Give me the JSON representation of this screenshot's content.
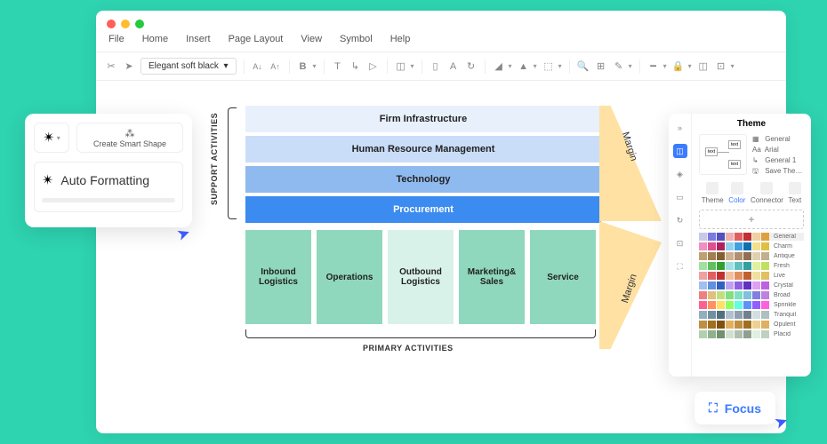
{
  "menubar": [
    "File",
    "Home",
    "Insert",
    "Page Layout",
    "View",
    "Symbol",
    "Help"
  ],
  "toolbar": {
    "font": "Elegant soft black"
  },
  "diagram": {
    "support_label": "SUPPORT ACTIVITIES",
    "primary_label": "PRIMARY ACTIVITIES",
    "margin_label": "Margin",
    "margin_color": "#ffe1a3",
    "support_rows": [
      {
        "label": "Firm Infrastructure",
        "bg": "#e8f0fc"
      },
      {
        "label": "Human Resource Management",
        "bg": "#c9ddf8"
      },
      {
        "label": "Technology",
        "bg": "#8fbaf0"
      },
      {
        "label": "Procurement",
        "bg": "#3b8bf0"
      }
    ],
    "primary_boxes": [
      {
        "label": "Inbound Logistics",
        "bg": "#8fd8be"
      },
      {
        "label": "Operations",
        "bg": "#8fd8be"
      },
      {
        "label": "Outbound Logistics",
        "bg": "#d9f2e9"
      },
      {
        "label": "Marketing& Sales",
        "bg": "#8fd8be"
      },
      {
        "label": "Service",
        "bg": "#8fd8be"
      }
    ]
  },
  "popup": {
    "smart_label": "Create Smart Shape",
    "auto_label": "Auto Formatting"
  },
  "theme": {
    "title": "Theme",
    "legend": [
      "General",
      "Arial",
      "General 1",
      "Save The…"
    ],
    "tabs": [
      "Theme",
      "Color",
      "Connector",
      "Text"
    ],
    "active_tab": 1,
    "swatch_sets": [
      {
        "name": "General",
        "colors": [
          "#c8c8e8",
          "#7a7ae0",
          "#5050c0",
          "#f0b0b0",
          "#e06060",
          "#c03030",
          "#f0d0a0",
          "#e0a040"
        ]
      },
      {
        "name": "Charm",
        "colors": [
          "#f090c0",
          "#e05090",
          "#b02060",
          "#90d0f0",
          "#40a0e0",
          "#1070b0",
          "#f0e090",
          "#e0c040"
        ]
      },
      {
        "name": "Antique",
        "colors": [
          "#c0a070",
          "#a08050",
          "#806030",
          "#d0b090",
          "#b09070",
          "#907050",
          "#e0d0b0",
          "#c0b090"
        ]
      },
      {
        "name": "Fresh",
        "colors": [
          "#a0e0a0",
          "#60c060",
          "#30a030",
          "#a0e0e0",
          "#60c0c0",
          "#30a0a0",
          "#e0f0a0",
          "#c0e060"
        ]
      },
      {
        "name": "Live",
        "colors": [
          "#f0a0a0",
          "#e06060",
          "#c03030",
          "#f0c0a0",
          "#e09060",
          "#c06030",
          "#f0e0a0",
          "#e0c060"
        ]
      },
      {
        "name": "Crystal",
        "colors": [
          "#a0c0f0",
          "#6090e0",
          "#3060c0",
          "#c0a0f0",
          "#9060e0",
          "#6030c0",
          "#e0a0f0",
          "#c060e0"
        ]
      },
      {
        "name": "Broad",
        "colors": [
          "#f08080",
          "#e0c080",
          "#c0e080",
          "#80e080",
          "#80e0c0",
          "#80c0e0",
          "#8080e0",
          "#c080e0"
        ]
      },
      {
        "name": "Sprinkle",
        "colors": [
          "#ff6090",
          "#ff9060",
          "#ffe060",
          "#90ff60",
          "#60ffe0",
          "#6090ff",
          "#9060ff",
          "#ff60e0"
        ]
      },
      {
        "name": "Tranquil",
        "colors": [
          "#90b0c0",
          "#7090a0",
          "#507080",
          "#b0c0d0",
          "#90a0b0",
          "#708090",
          "#d0e0e0",
          "#b0c0c0"
        ]
      },
      {
        "name": "Opulent",
        "colors": [
          "#c09040",
          "#a07020",
          "#805010",
          "#e0b060",
          "#c09040",
          "#a07020",
          "#f0d090",
          "#e0b060"
        ]
      },
      {
        "name": "Placid",
        "colors": [
          "#b0d0b0",
          "#90b090",
          "#709070",
          "#d0e0d0",
          "#b0c0b0",
          "#90a090",
          "#e0f0e0",
          "#c0d0c0"
        ]
      }
    ]
  },
  "focus": {
    "label": "Focus"
  }
}
